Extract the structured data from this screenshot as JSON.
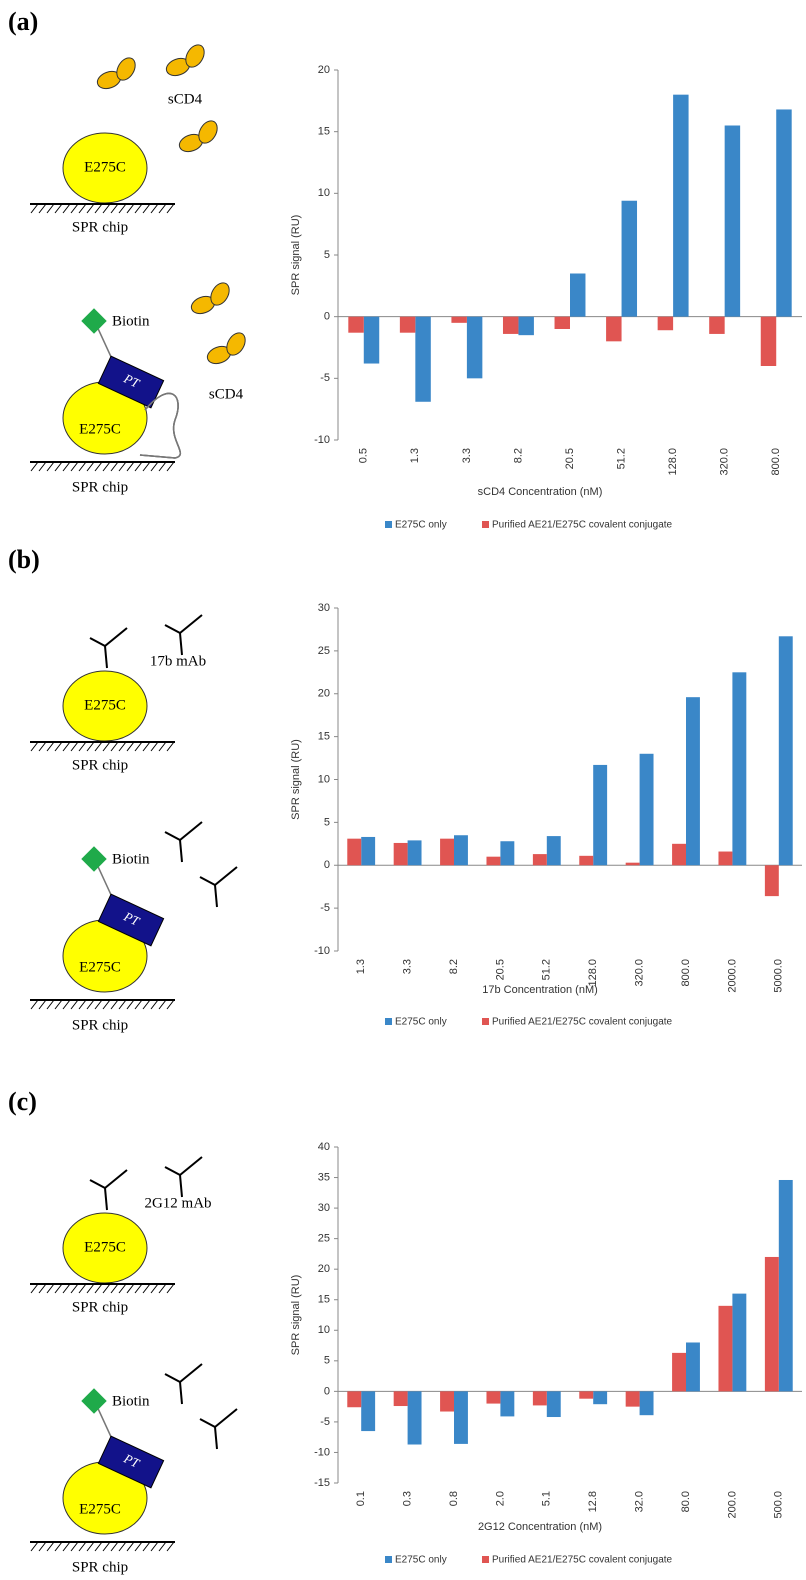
{
  "panels": [
    {
      "label": "(a)",
      "top": {
        "protein": "E275C",
        "surface": "SPR chip",
        "ligand": "sCD4"
      },
      "bottom": {
        "protein": "E275C",
        "surface": "SPR chip",
        "ligand": "sCD4",
        "biotin": "Biotin",
        "linker": "PT"
      }
    },
    {
      "label": "(b)",
      "top": {
        "protein": "E275C",
        "surface": "SPR chip",
        "ligand": "17b mAb"
      },
      "bottom": {
        "protein": "E275C",
        "surface": "SPR chip",
        "biotin": "Biotin",
        "linker": "PT"
      }
    },
    {
      "label": "(c)",
      "top": {
        "protein": "E275C",
        "surface": "SPR chip",
        "ligand": "2G12 mAb"
      },
      "bottom": {
        "protein": "E275C",
        "surface": "SPR chip",
        "biotin": "Biotin",
        "linker": "PT"
      }
    }
  ],
  "chart_data": [
    {
      "type": "bar",
      "y_label": "SPR signal (RU)",
      "x_label": "sCD4 Concentration (nM)",
      "categories": [
        "0.5",
        "1.3",
        "3.3",
        "8.2",
        "20.5",
        "51.2",
        "128.0",
        "320.0",
        "800.0"
      ],
      "series": [
        {
          "name": "E275C only",
          "color": "#3a87c8",
          "values": [
            -3.8,
            -6.9,
            -5.0,
            -1.5,
            3.5,
            9.4,
            18.0,
            15.5,
            16.8
          ]
        },
        {
          "name": "Purified AE21/E275C covalent conjugate",
          "color": "#e05552",
          "values": [
            -1.3,
            -1.3,
            -0.5,
            -1.4,
            -1.0,
            -2.0,
            -1.1,
            -1.4,
            -4.0
          ]
        }
      ],
      "ylim": [
        -10,
        20
      ],
      "yticks": [
        -10,
        -5,
        0,
        5,
        10,
        15,
        20
      ],
      "grid": false,
      "legend": "bottom"
    },
    {
      "type": "bar",
      "y_label": "SPR signal (RU)",
      "x_label": "17b Concentration (nM)",
      "categories": [
        "1.3",
        "3.3",
        "8.2",
        "20.5",
        "51.2",
        "128.0",
        "320.0",
        "800.0",
        "2000.0",
        "5000.0"
      ],
      "series": [
        {
          "name": "E275C only",
          "color": "#3a87c8",
          "values": [
            3.3,
            2.9,
            3.5,
            2.8,
            3.4,
            11.7,
            13.0,
            19.6,
            22.5,
            26.7
          ]
        },
        {
          "name": "Purified AE21/E275C covalent conjugate",
          "color": "#e05552",
          "values": [
            3.1,
            2.6,
            3.1,
            1.0,
            1.3,
            1.1,
            0.3,
            2.5,
            1.6,
            -3.6
          ]
        }
      ],
      "ylim": [
        -10,
        30
      ],
      "yticks": [
        -10,
        -5,
        0,
        5,
        10,
        15,
        20,
        25,
        30
      ],
      "grid": false,
      "legend": "bottom"
    },
    {
      "type": "bar",
      "y_label": "SPR signal (RU)",
      "x_label": "2G12 Concentration (nM)",
      "categories": [
        "0.1",
        "0.3",
        "0.8",
        "2.0",
        "5.1",
        "12.8",
        "32.0",
        "80.0",
        "200.0",
        "500.0"
      ],
      "series": [
        {
          "name": "E275C only",
          "color": "#3a87c8",
          "values": [
            -6.5,
            -8.7,
            -8.6,
            -4.1,
            -4.2,
            -2.1,
            -3.9,
            8.0,
            16.0,
            34.6
          ]
        },
        {
          "name": "Purified AE21/E275C covalent conjugate",
          "color": "#e05552",
          "values": [
            -2.6,
            -2.4,
            -3.3,
            -2.0,
            -2.3,
            -1.2,
            -2.5,
            6.3,
            14.0,
            22.0
          ]
        }
      ],
      "ylim": [
        -15,
        40
      ],
      "yticks": [
        -15,
        -10,
        -5,
        0,
        5,
        10,
        15,
        20,
        25,
        30,
        35,
        40
      ],
      "grid": false,
      "legend": "bottom"
    }
  ]
}
